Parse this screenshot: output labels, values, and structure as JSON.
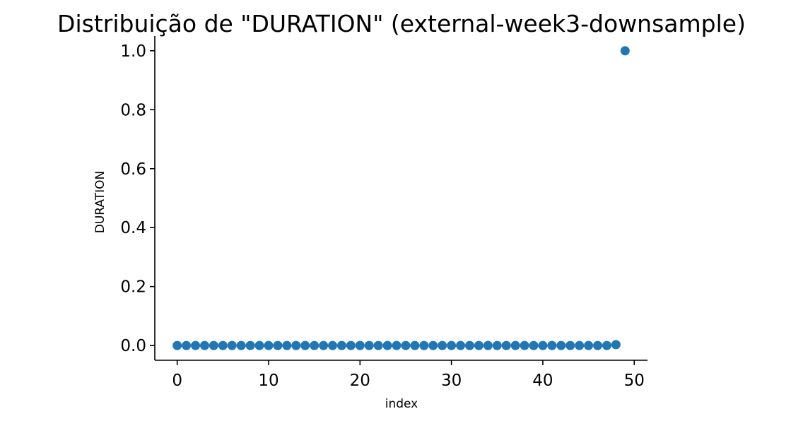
{
  "chart_data": {
    "type": "scatter",
    "title": "Distribuição de \"DURATION\" (external-week3-downsample)",
    "xlabel": "index",
    "ylabel": "DURATION",
    "xlim": [
      -2.45,
      51.45
    ],
    "ylim": [
      -0.05,
      1.05
    ],
    "x_ticks": [
      0,
      10,
      20,
      30,
      40,
      50
    ],
    "x_tick_labels": [
      "0",
      "10",
      "20",
      "30",
      "40",
      "50"
    ],
    "y_ticks": [
      0.0,
      0.2,
      0.4,
      0.6,
      0.8,
      1.0
    ],
    "y_tick_labels": [
      "0.0",
      "0.2",
      "0.4",
      "0.6",
      "0.8",
      "1.0"
    ],
    "grid": false,
    "legend": false,
    "spines": [
      "left",
      "bottom"
    ],
    "marker_color": "#1f77b4",
    "x": [
      0,
      1,
      2,
      3,
      4,
      5,
      6,
      7,
      8,
      9,
      10,
      11,
      12,
      13,
      14,
      15,
      16,
      17,
      18,
      19,
      20,
      21,
      22,
      23,
      24,
      25,
      26,
      27,
      28,
      29,
      30,
      31,
      32,
      33,
      34,
      35,
      36,
      37,
      38,
      39,
      40,
      41,
      42,
      43,
      44,
      45,
      46,
      47,
      48,
      49
    ],
    "y": [
      0,
      0,
      0,
      0,
      0,
      0,
      0,
      0,
      0,
      0,
      0,
      0,
      0,
      0,
      0,
      0,
      0,
      0,
      0,
      0,
      0,
      0,
      0,
      0,
      0,
      0,
      0,
      0,
      0,
      0,
      0,
      0,
      0,
      0,
      0,
      0,
      0,
      0,
      0,
      0,
      0,
      0,
      0,
      0,
      0,
      0,
      0,
      0,
      0.003,
      1.0
    ]
  }
}
